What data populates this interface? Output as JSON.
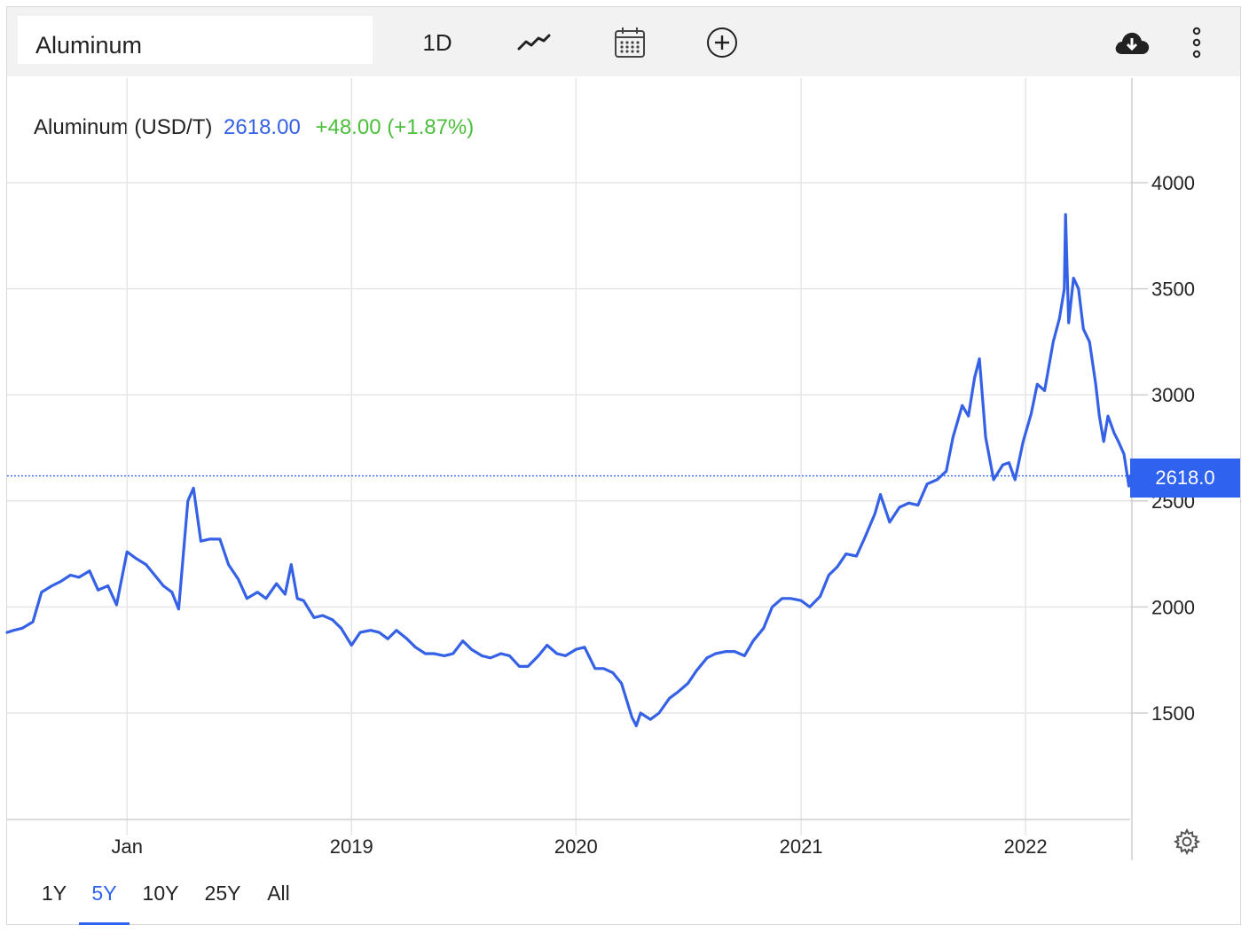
{
  "toolbar": {
    "symbol": "Aluminum",
    "interval_label": "1D",
    "icons": [
      "line-chart-icon",
      "calendar-icon",
      "add-indicator-icon",
      "download-cloud-icon",
      "more-vertical-icon"
    ]
  },
  "legend": {
    "name": "Aluminum (USD/T)",
    "price": "2618.00",
    "change": "+48.00 (+1.87%)"
  },
  "price_tag": "2618.0",
  "range_buttons": [
    "1Y",
    "5Y",
    "10Y",
    "25Y",
    "All"
  ],
  "active_range": "5Y",
  "colors": {
    "line": "#3561e6",
    "up": "#4bbf3c",
    "tag": "#2f63ef",
    "grid": "#e6e6e6"
  },
  "chart_data": {
    "type": "line",
    "title": "",
    "xlabel": "",
    "ylabel": "",
    "ylim": [
      1000,
      4300
    ],
    "xlim": [
      "2017-06-20",
      "2022-06-20"
    ],
    "y_ticks": [
      1500,
      2000,
      2500,
      3000,
      3500,
      4000
    ],
    "x_ticks": [
      {
        "date": "2018-01-01",
        "label": "Jan"
      },
      {
        "date": "2019-01-01",
        "label": "2019"
      },
      {
        "date": "2020-01-01",
        "label": "2020"
      },
      {
        "date": "2021-01-01",
        "label": "2021"
      },
      {
        "date": "2022-01-01",
        "label": "2022"
      }
    ],
    "grid": true,
    "current_value": 2618,
    "series": [
      {
        "name": "Aluminum (USD/T)",
        "points": [
          [
            "2017-06-20",
            1880
          ],
          [
            "2017-07-01",
            1890
          ],
          [
            "2017-07-15",
            1900
          ],
          [
            "2017-08-01",
            1930
          ],
          [
            "2017-08-15",
            2070
          ],
          [
            "2017-09-01",
            2100
          ],
          [
            "2017-09-15",
            2120
          ],
          [
            "2017-10-01",
            2150
          ],
          [
            "2017-10-15",
            2140
          ],
          [
            "2017-11-01",
            2170
          ],
          [
            "2017-11-15",
            2080
          ],
          [
            "2017-12-01",
            2100
          ],
          [
            "2017-12-15",
            2010
          ],
          [
            "2018-01-01",
            2260
          ],
          [
            "2018-01-15",
            2230
          ],
          [
            "2018-02-01",
            2200
          ],
          [
            "2018-02-15",
            2150
          ],
          [
            "2018-03-01",
            2100
          ],
          [
            "2018-03-15",
            2070
          ],
          [
            "2018-03-26",
            1990
          ],
          [
            "2018-04-10",
            2500
          ],
          [
            "2018-04-19",
            2560
          ],
          [
            "2018-05-01",
            2310
          ],
          [
            "2018-05-15",
            2320
          ],
          [
            "2018-06-01",
            2320
          ],
          [
            "2018-06-15",
            2200
          ],
          [
            "2018-07-01",
            2130
          ],
          [
            "2018-07-15",
            2040
          ],
          [
            "2018-08-01",
            2070
          ],
          [
            "2018-08-15",
            2040
          ],
          [
            "2018-09-01",
            2110
          ],
          [
            "2018-09-15",
            2060
          ],
          [
            "2018-09-25",
            2200
          ],
          [
            "2018-10-05",
            2040
          ],
          [
            "2018-10-15",
            2030
          ],
          [
            "2018-11-01",
            1950
          ],
          [
            "2018-11-15",
            1960
          ],
          [
            "2018-12-01",
            1940
          ],
          [
            "2018-12-15",
            1900
          ],
          [
            "2019-01-01",
            1820
          ],
          [
            "2019-01-15",
            1880
          ],
          [
            "2019-02-01",
            1890
          ],
          [
            "2019-02-15",
            1880
          ],
          [
            "2019-03-01",
            1850
          ],
          [
            "2019-03-15",
            1890
          ],
          [
            "2019-04-01",
            1850
          ],
          [
            "2019-04-15",
            1810
          ],
          [
            "2019-05-01",
            1780
          ],
          [
            "2019-05-15",
            1780
          ],
          [
            "2019-06-01",
            1770
          ],
          [
            "2019-06-15",
            1780
          ],
          [
            "2019-07-01",
            1840
          ],
          [
            "2019-07-15",
            1800
          ],
          [
            "2019-08-01",
            1770
          ],
          [
            "2019-08-15",
            1760
          ],
          [
            "2019-09-01",
            1780
          ],
          [
            "2019-09-15",
            1770
          ],
          [
            "2019-10-01",
            1720
          ],
          [
            "2019-10-15",
            1720
          ],
          [
            "2019-11-01",
            1770
          ],
          [
            "2019-11-15",
            1820
          ],
          [
            "2019-12-01",
            1780
          ],
          [
            "2019-12-15",
            1770
          ],
          [
            "2020-01-01",
            1800
          ],
          [
            "2020-01-15",
            1810
          ],
          [
            "2020-02-01",
            1710
          ],
          [
            "2020-02-15",
            1710
          ],
          [
            "2020-03-01",
            1690
          ],
          [
            "2020-03-15",
            1640
          ],
          [
            "2020-04-01",
            1480
          ],
          [
            "2020-04-08",
            1440
          ],
          [
            "2020-04-15",
            1500
          ],
          [
            "2020-05-01",
            1470
          ],
          [
            "2020-05-15",
            1500
          ],
          [
            "2020-06-01",
            1570
          ],
          [
            "2020-06-15",
            1600
          ],
          [
            "2020-07-01",
            1640
          ],
          [
            "2020-07-15",
            1700
          ],
          [
            "2020-08-01",
            1760
          ],
          [
            "2020-08-15",
            1780
          ],
          [
            "2020-09-01",
            1790
          ],
          [
            "2020-09-15",
            1790
          ],
          [
            "2020-10-01",
            1770
          ],
          [
            "2020-10-15",
            1840
          ],
          [
            "2020-11-01",
            1900
          ],
          [
            "2020-11-15",
            2000
          ],
          [
            "2020-12-01",
            2040
          ],
          [
            "2020-12-15",
            2040
          ],
          [
            "2021-01-01",
            2030
          ],
          [
            "2021-01-15",
            2000
          ],
          [
            "2021-02-01",
            2050
          ],
          [
            "2021-02-15",
            2150
          ],
          [
            "2021-03-01",
            2190
          ],
          [
            "2021-03-15",
            2250
          ],
          [
            "2021-04-01",
            2240
          ],
          [
            "2021-04-15",
            2330
          ],
          [
            "2021-05-01",
            2440
          ],
          [
            "2021-05-10",
            2530
          ],
          [
            "2021-05-25",
            2400
          ],
          [
            "2021-06-10",
            2470
          ],
          [
            "2021-06-25",
            2490
          ],
          [
            "2021-07-10",
            2480
          ],
          [
            "2021-07-25",
            2580
          ],
          [
            "2021-08-10",
            2600
          ],
          [
            "2021-08-25",
            2640
          ],
          [
            "2021-09-05",
            2800
          ],
          [
            "2021-09-20",
            2950
          ],
          [
            "2021-09-30",
            2900
          ],
          [
            "2021-10-10",
            3080
          ],
          [
            "2021-10-18",
            3170
          ],
          [
            "2021-10-28",
            2800
          ],
          [
            "2021-11-10",
            2600
          ],
          [
            "2021-11-25",
            2670
          ],
          [
            "2021-12-05",
            2680
          ],
          [
            "2021-12-15",
            2600
          ],
          [
            "2021-12-28",
            2780
          ],
          [
            "2022-01-10",
            2910
          ],
          [
            "2022-01-20",
            3050
          ],
          [
            "2022-02-01",
            3020
          ],
          [
            "2022-02-15",
            3250
          ],
          [
            "2022-02-25",
            3360
          ],
          [
            "2022-03-05",
            3500
          ],
          [
            "2022-03-07",
            3850
          ],
          [
            "2022-03-12",
            3340
          ],
          [
            "2022-03-20",
            3550
          ],
          [
            "2022-03-28",
            3500
          ],
          [
            "2022-04-05",
            3310
          ],
          [
            "2022-04-15",
            3250
          ],
          [
            "2022-04-25",
            3050
          ],
          [
            "2022-05-01",
            2900
          ],
          [
            "2022-05-08",
            2780
          ],
          [
            "2022-05-15",
            2900
          ],
          [
            "2022-05-25",
            2820
          ],
          [
            "2022-06-01",
            2780
          ],
          [
            "2022-06-10",
            2720
          ],
          [
            "2022-06-18",
            2570
          ],
          [
            "2022-06-20",
            2618
          ]
        ]
      }
    ]
  }
}
